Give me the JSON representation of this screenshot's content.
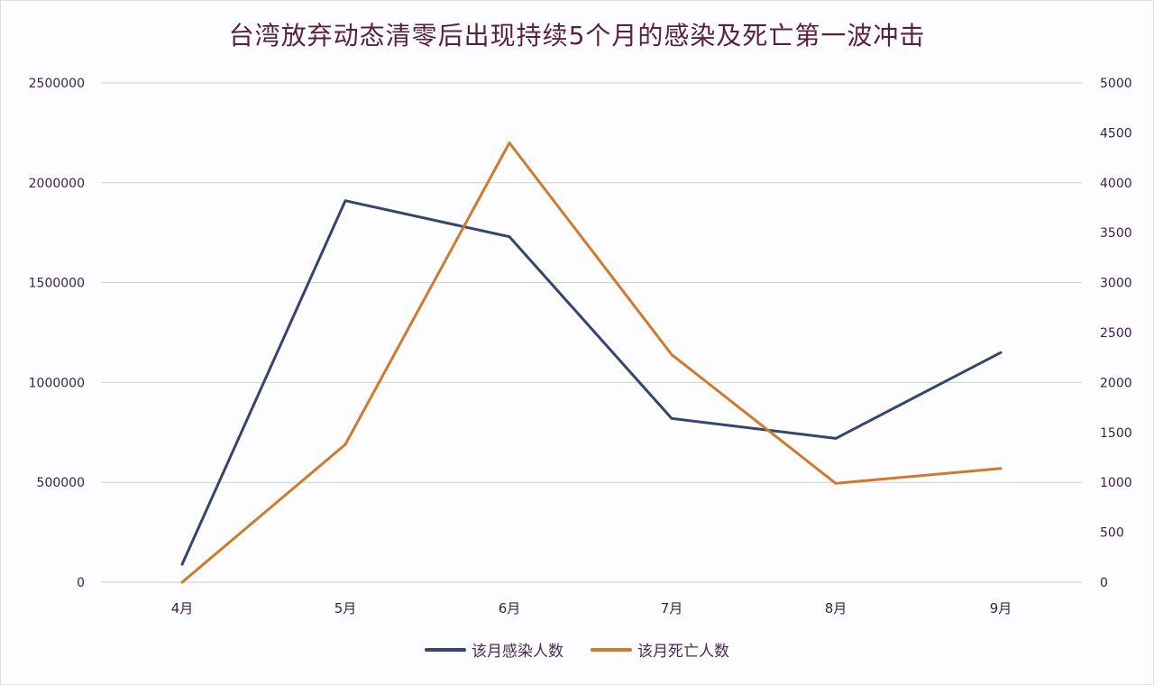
{
  "title": "台湾放弃动态清零后出现持续5个月的感染及死亡第一波冲击",
  "colors": {
    "infections": "#34466e",
    "deaths": "#d07a2e",
    "grid": "#c8cfd8",
    "text": "#3c2248",
    "title": "#5a1f3c"
  },
  "legend": {
    "items": [
      {
        "label": "该月感染人数",
        "color": "#34466e"
      },
      {
        "label": "该月死亡人数",
        "color": "#d07a2e"
      }
    ]
  },
  "chart_data": {
    "type": "line",
    "title": "台湾放弃动态清零后出现持续5个月的感染及死亡第一波冲击",
    "categories": [
      "4月",
      "5月",
      "6月",
      "7月",
      "8月",
      "9月"
    ],
    "series": [
      {
        "name": "该月感染人数",
        "axis": "left",
        "color": "#34466e",
        "values": [
          90000,
          1910000,
          1730000,
          820000,
          720000,
          1150000
        ]
      },
      {
        "name": "该月死亡人数",
        "axis": "right",
        "color": "#d07a2e",
        "values": [
          0,
          1380,
          4400,
          2280,
          990,
          1140
        ]
      }
    ],
    "xlabel": "",
    "ylabel_left": "",
    "ylabel_right": "",
    "ylim_left": [
      0,
      2500000
    ],
    "ylim_right": [
      0,
      5000
    ],
    "yticks_left": [
      "0",
      "500000",
      "1000000",
      "1500000",
      "2000000",
      "2500000"
    ],
    "yticks_right": [
      "0",
      "500",
      "1000",
      "1500",
      "2000",
      "2500",
      "3000",
      "3500",
      "4000",
      "4500",
      "5000"
    ],
    "grid": true,
    "legend_position": "bottom"
  }
}
